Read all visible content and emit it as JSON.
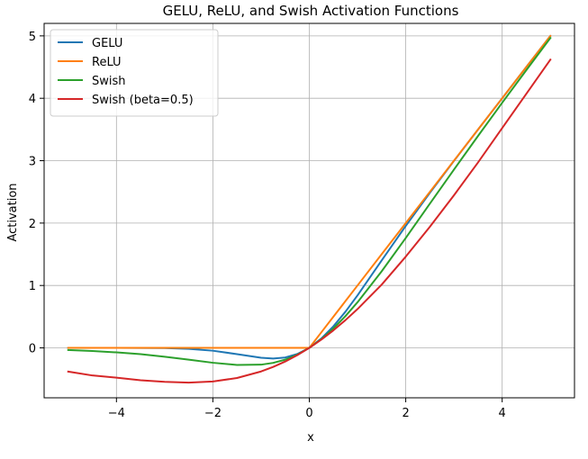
{
  "chart_data": {
    "type": "line",
    "title": "GELU, ReLU, and Swish Activation Functions",
    "xlabel": "x",
    "ylabel": "Activation",
    "xlim": [
      -5.5,
      5.5
    ],
    "ylim": [
      -0.8,
      5.2
    ],
    "xticks": [
      -4,
      -2,
      0,
      2,
      4
    ],
    "yticks": [
      0,
      1,
      2,
      3,
      4,
      5
    ],
    "xtick_labels": [
      "−4",
      "−2",
      "0",
      "2",
      "4"
    ],
    "ytick_labels": [
      "0",
      "1",
      "2",
      "3",
      "4",
      "5"
    ],
    "grid": true,
    "legend_position": "top-left",
    "x": [
      -5,
      -4.5,
      -4,
      -3.5,
      -3,
      -2.5,
      -2,
      -1.5,
      -1,
      -0.75,
      -0.5,
      -0.25,
      0,
      0.25,
      0.5,
      0.75,
      1,
      1.5,
      2,
      2.5,
      3,
      3.5,
      4,
      4.5,
      5
    ],
    "series": [
      {
        "name": "GELU",
        "color": "#1f77b4",
        "values": [
          0,
          0,
          -0.0001,
          -0.0008,
          -0.004,
          -0.0155,
          -0.0455,
          -0.1002,
          -0.1587,
          -0.17,
          -0.1543,
          -0.0988,
          0,
          0.1512,
          0.3457,
          0.58,
          0.8413,
          1.3998,
          1.9545,
          2.4845,
          2.996,
          3.4992,
          3.9999,
          4.5,
          5
        ]
      },
      {
        "name": "ReLU",
        "color": "#ff7f0e",
        "values": [
          0,
          0,
          0,
          0,
          0,
          0,
          0,
          0,
          0,
          0,
          0,
          0,
          0,
          0.25,
          0.5,
          0.75,
          1,
          1.5,
          2,
          2.5,
          3,
          3.5,
          4,
          4.5,
          5
        ]
      },
      {
        "name": "Swish",
        "color": "#2ca02c",
        "values": [
          -0.0335,
          -0.0498,
          -0.0719,
          -0.1003,
          -0.1423,
          -0.1896,
          -0.2384,
          -0.2736,
          -0.2689,
          -0.2403,
          -0.1888,
          -0.1099,
          0,
          0.1401,
          0.3112,
          0.5097,
          0.7311,
          1.2264,
          1.7616,
          2.3104,
          2.8577,
          3.397,
          3.9281,
          4.45,
          4.9665
        ]
      },
      {
        "name": "Swish (beta=0.5)",
        "color": "#d62728",
        "values": [
          -0.38,
          -0.442,
          -0.477,
          -0.518,
          -0.544,
          -0.557,
          -0.538,
          -0.483,
          -0.378,
          -0.305,
          -0.219,
          -0.117,
          0,
          0.133,
          0.281,
          0.445,
          0.622,
          1.013,
          1.462,
          1.94,
          2.445,
          2.972,
          3.523,
          4.07,
          4.62
        ]
      }
    ]
  }
}
